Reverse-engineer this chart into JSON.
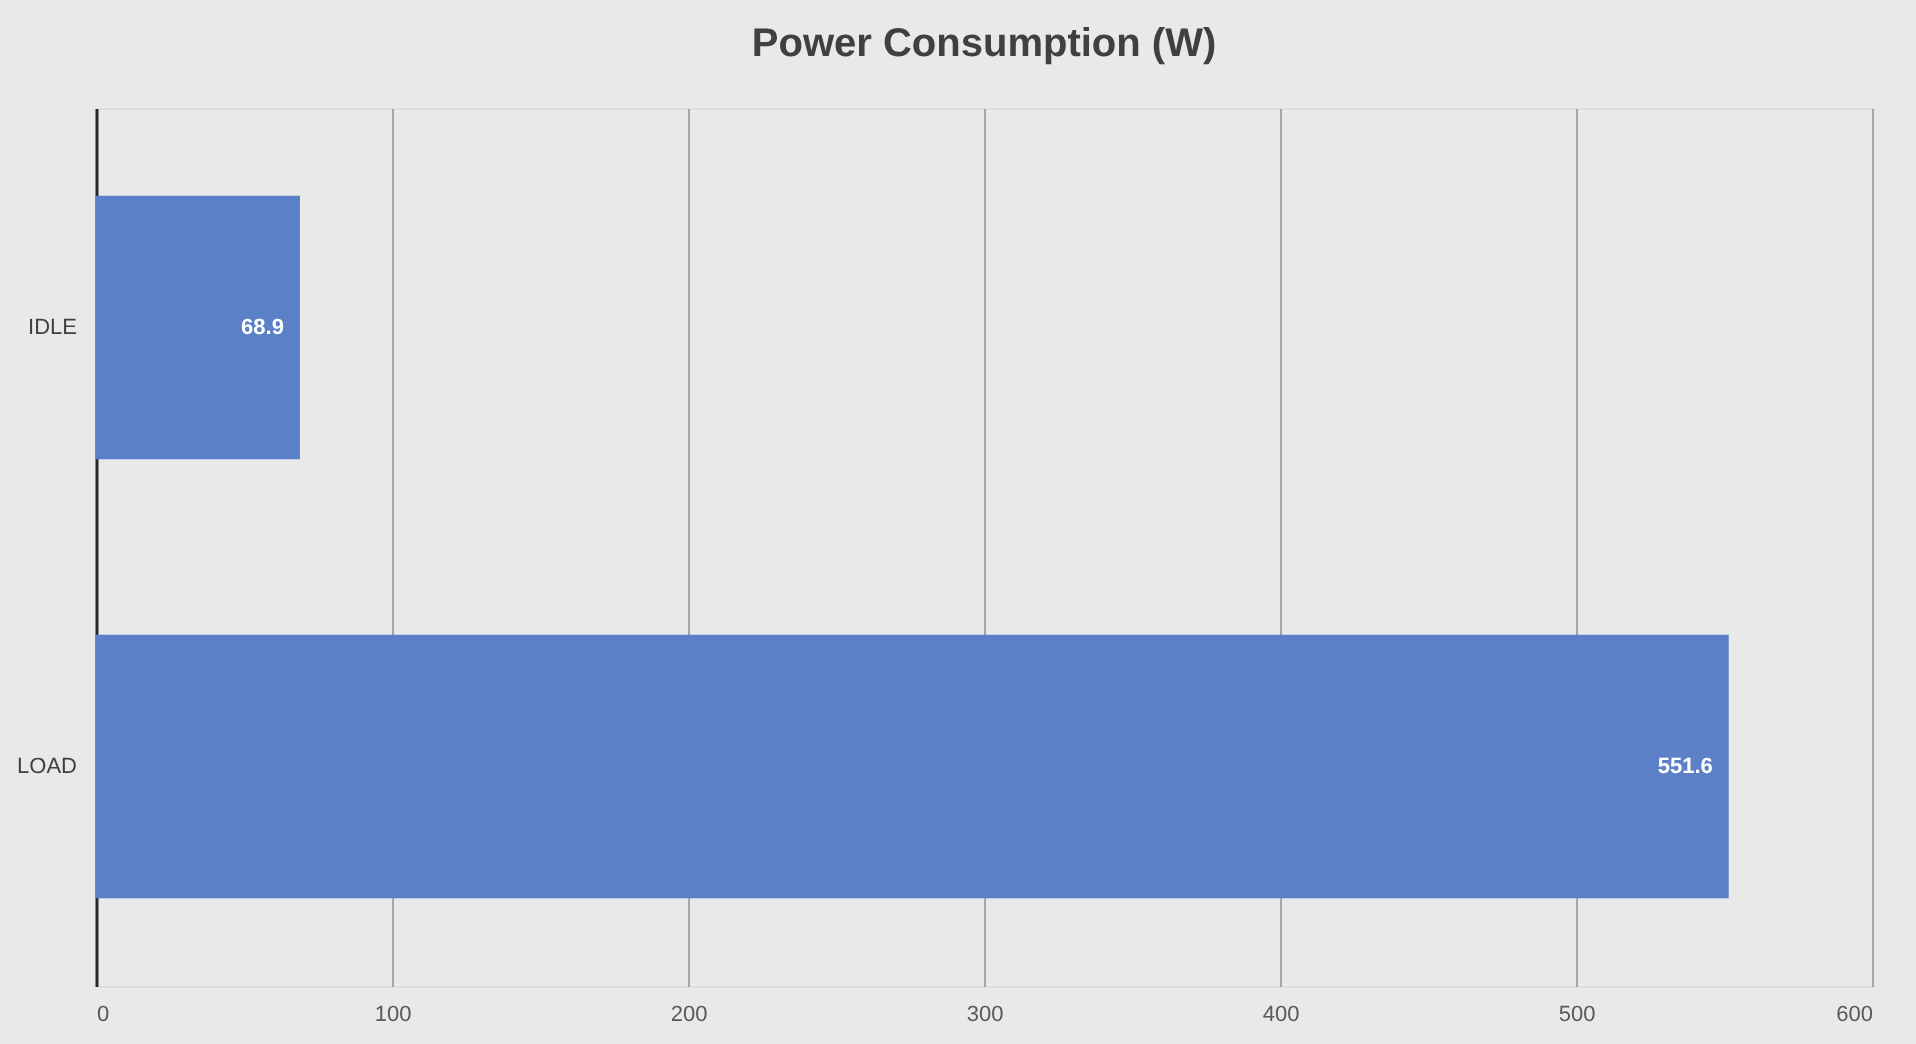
{
  "chart_data": {
    "type": "bar",
    "title": "Power Consumption (W)",
    "orientation": "horizontal",
    "categories": [
      "IDLE",
      "LOAD"
    ],
    "values": [
      68.9,
      551.6
    ],
    "color": "#5b80c8",
    "xlim": [
      0,
      600
    ],
    "xticks": [
      0,
      100,
      200,
      300,
      400,
      500,
      600
    ],
    "grid": "x",
    "data_labels": true
  }
}
